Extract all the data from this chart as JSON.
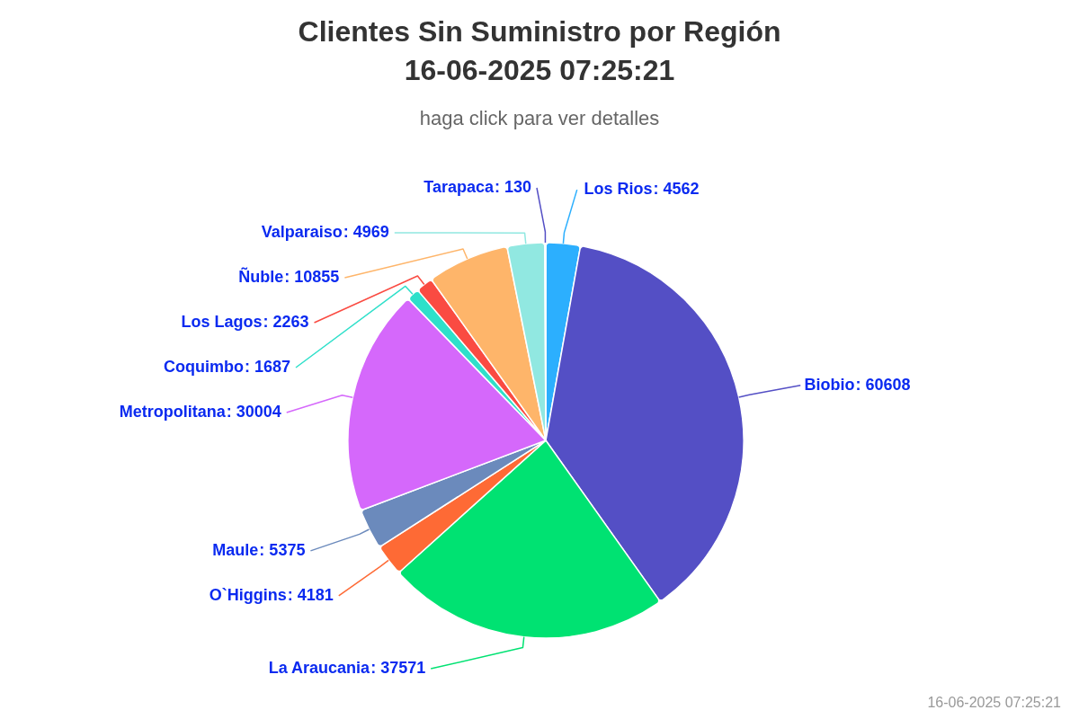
{
  "chart_data": {
    "type": "pie",
    "title": "Clientes Sin Suministro por Región\n16-06-2025 07:25:21",
    "subtitle": "haga click para ver detalles",
    "categories": [
      "Los Rios",
      "Biobio",
      "La Araucania",
      "O`Higgins",
      "Maule",
      "Metropolitana",
      "Coquimbo",
      "Los Lagos",
      "Ñuble",
      "Valparaiso",
      "Tarapaca"
    ],
    "values": [
      4562,
      60608,
      37571,
      4181,
      5375,
      30004,
      1687,
      2263,
      10855,
      4969,
      130
    ],
    "value_labels": [
      ": 4562",
      ": 60608",
      ": 37571",
      ": 4181",
      ": 5375",
      ": 30004",
      ": 1687",
      ": 2263",
      ": 10855",
      ": 4969",
      ": 130"
    ],
    "colors": [
      "#2caffe",
      "#544fc5",
      "#00e272",
      "#fe6a35",
      "#6b8abc",
      "#d568fb",
      "#2ee0ca",
      "#fa4b42",
      "#feb56a",
      "#91e8e1",
      "#544fc5"
    ],
    "annotations": [
      "16-06-2025 07:25:21"
    ]
  }
}
